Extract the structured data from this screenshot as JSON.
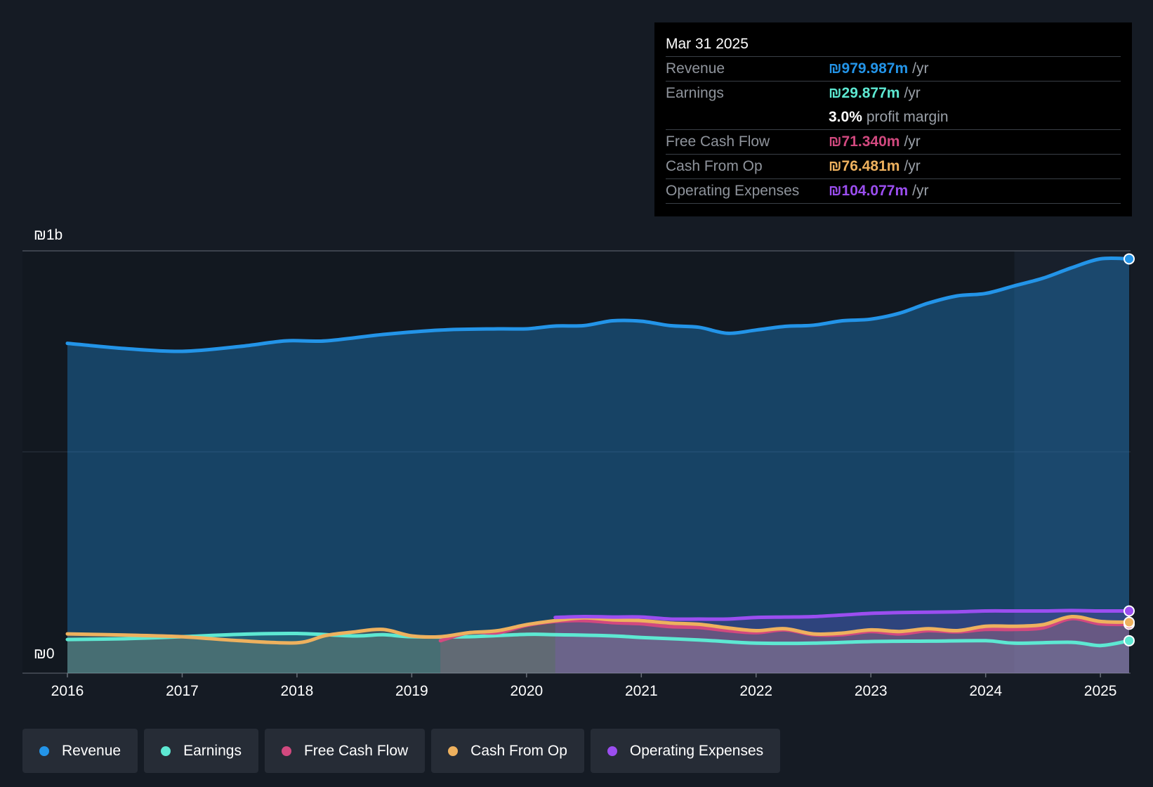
{
  "tooltip": {
    "date": "Mar 31 2025",
    "rows": [
      {
        "label": "Revenue",
        "value": "₪979.987m",
        "unit": "/yr",
        "color": "#2394e8"
      },
      {
        "label": "Earnings",
        "value": "₪29.877m",
        "unit": "/yr",
        "color": "#5de8d2"
      },
      {
        "label": "",
        "value": "3.0%",
        "unit": "profit margin",
        "color": "#ffffff"
      },
      {
        "label": "Free Cash Flow",
        "value": "₪71.340m",
        "unit": "/yr",
        "color": "#d2497f"
      },
      {
        "label": "Cash From Op",
        "value": "₪76.481m",
        "unit": "/yr",
        "color": "#eeb15e"
      },
      {
        "label": "Operating Expenses",
        "value": "₪104.077m",
        "unit": "/yr",
        "color": "#9b4ef0"
      }
    ]
  },
  "legend": [
    {
      "label": "Revenue",
      "color": "#2394e8"
    },
    {
      "label": "Earnings",
      "color": "#5de8d2"
    },
    {
      "label": "Free Cash Flow",
      "color": "#d2497f"
    },
    {
      "label": "Cash From Op",
      "color": "#eeb15e"
    },
    {
      "label": "Operating Expenses",
      "color": "#9b4ef0"
    }
  ],
  "chart_data": {
    "type": "area",
    "y_axis_labels": [
      "₪1b",
      "₪0"
    ],
    "ylim": [
      -0.04,
      1.0
    ],
    "y_units": "billions ILS",
    "xlim": [
      2016.0,
      2025.25
    ],
    "x_ticks": [
      2016,
      2017,
      2018,
      2019,
      2020,
      2021,
      2022,
      2023,
      2024,
      2025
    ],
    "x_tick_labels": [
      "2016",
      "2017",
      "2018",
      "2019",
      "2020",
      "2021",
      "2022",
      "2023",
      "2024",
      "2025"
    ],
    "grid": "horizontal",
    "legend_position": "bottom-left",
    "highlight_from": 2024.25,
    "series": [
      {
        "name": "Revenue",
        "color": "#2394e8",
        "x": [
          2016.0,
          2016.5,
          2017.0,
          2017.5,
          2017.9,
          2018.25,
          2018.75,
          2019.25,
          2019.75,
          2020.0,
          2020.25,
          2020.5,
          2020.75,
          2021.0,
          2021.25,
          2021.5,
          2021.75,
          2022.0,
          2022.25,
          2022.5,
          2022.75,
          2023.0,
          2023.25,
          2023.5,
          2023.75,
          2024.0,
          2024.25,
          2024.5,
          2024.75,
          2025.0,
          2025.25
        ],
        "values": [
          0.77,
          0.757,
          0.75,
          0.762,
          0.776,
          0.776,
          0.792,
          0.803,
          0.806,
          0.806,
          0.813,
          0.814,
          0.826,
          0.825,
          0.814,
          0.81,
          0.795,
          0.803,
          0.812,
          0.815,
          0.826,
          0.83,
          0.845,
          0.87,
          0.888,
          0.894,
          0.913,
          0.932,
          0.958,
          0.98,
          0.98
        ]
      },
      {
        "name": "Earnings",
        "color": "#5de8d2",
        "x": [
          2016.0,
          2016.5,
          2017.0,
          2017.5,
          2018.0,
          2018.5,
          2018.75,
          2019.0,
          2019.5,
          2020.0,
          2020.25,
          2020.75,
          2021.0,
          2021.5,
          2022.0,
          2022.5,
          2023.0,
          2023.5,
          2024.0,
          2024.25,
          2024.75,
          2025.0,
          2025.25
        ],
        "values": [
          0.033,
          0.035,
          0.04,
          0.046,
          0.048,
          0.042,
          0.045,
          0.04,
          0.04,
          0.046,
          0.045,
          0.042,
          0.038,
          0.032,
          0.024,
          0.024,
          0.028,
          0.029,
          0.03,
          0.024,
          0.026,
          0.018,
          0.03
        ]
      },
      {
        "name": "Free Cash Flow",
        "color": "#d2497f",
        "x": [
          2019.25,
          2019.5,
          2019.75,
          2020.0,
          2020.25,
          2020.5,
          2020.75,
          2021.0,
          2021.25,
          2021.5,
          2021.75,
          2022.0,
          2022.25,
          2022.5,
          2022.75,
          2023.0,
          2023.25,
          2023.5,
          2023.75,
          2024.0,
          2024.25,
          2024.5,
          2024.75,
          2025.0,
          2025.25
        ],
        "values": [
          0.03,
          0.05,
          0.05,
          0.068,
          0.078,
          0.08,
          0.075,
          0.072,
          0.065,
          0.063,
          0.055,
          0.05,
          0.057,
          0.045,
          0.045,
          0.053,
          0.047,
          0.055,
          0.052,
          0.058,
          0.058,
          0.062,
          0.085,
          0.072,
          0.071
        ]
      },
      {
        "name": "Cash From Op",
        "color": "#eeb15e",
        "x": [
          2016.0,
          2016.5,
          2017.0,
          2017.5,
          2018.0,
          2018.25,
          2018.5,
          2018.75,
          2019.0,
          2019.25,
          2019.5,
          2019.75,
          2020.0,
          2020.25,
          2020.5,
          2020.75,
          2021.0,
          2021.25,
          2021.5,
          2021.75,
          2022.0,
          2022.25,
          2022.5,
          2022.75,
          2023.0,
          2023.25,
          2023.5,
          2023.75,
          2024.0,
          2024.25,
          2024.5,
          2024.75,
          2025.0,
          2025.25
        ],
        "values": [
          0.047,
          0.044,
          0.04,
          0.03,
          0.025,
          0.043,
          0.052,
          0.058,
          0.042,
          0.04,
          0.05,
          0.055,
          0.07,
          0.08,
          0.087,
          0.082,
          0.08,
          0.074,
          0.071,
          0.062,
          0.055,
          0.06,
          0.047,
          0.049,
          0.057,
          0.053,
          0.06,
          0.055,
          0.066,
          0.066,
          0.07,
          0.09,
          0.078,
          0.076
        ]
      },
      {
        "name": "Operating Expenses",
        "color": "#9b4ef0",
        "x": [
          2020.25,
          2020.5,
          2020.75,
          2021.0,
          2021.25,
          2021.5,
          2021.75,
          2022.0,
          2022.25,
          2022.5,
          2022.75,
          2023.0,
          2023.25,
          2023.5,
          2023.75,
          2024.0,
          2024.25,
          2024.5,
          2024.75,
          2025.0,
          2025.25
        ],
        "values": [
          0.088,
          0.09,
          0.089,
          0.089,
          0.084,
          0.084,
          0.084,
          0.088,
          0.089,
          0.09,
          0.094,
          0.098,
          0.1,
          0.101,
          0.102,
          0.104,
          0.104,
          0.104,
          0.105,
          0.104,
          0.104
        ]
      }
    ]
  }
}
